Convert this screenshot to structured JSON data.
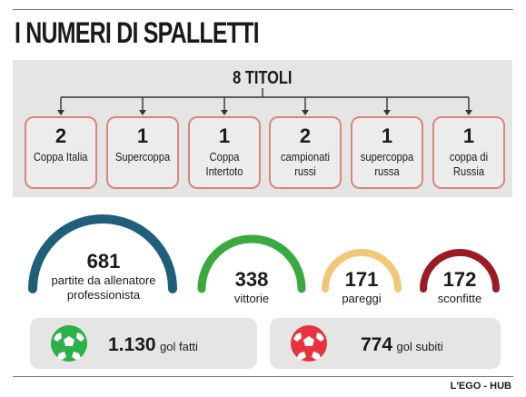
{
  "header": {
    "title": "I NUMERI DI SPALLETTI"
  },
  "titles": {
    "heading": "8 TITOLI",
    "items": [
      {
        "num": "2",
        "label": "Coppa Italia"
      },
      {
        "num": "1",
        "label": "Supercoppa"
      },
      {
        "num": "1",
        "label": "Coppa Intertoto"
      },
      {
        "num": "2",
        "label": "campionati russi"
      },
      {
        "num": "1",
        "label": "supercoppa russa"
      },
      {
        "num": "1",
        "label": "coppa di Russia"
      }
    ],
    "box_border_color": "#d9867a"
  },
  "stats": {
    "matches": {
      "value": "681",
      "label": "partite da allenatore professionista",
      "color": "#1f5f7a"
    },
    "wins": {
      "value": "338",
      "label": "vittorie",
      "color": "#3aaa3e"
    },
    "draws": {
      "value": "171",
      "label": "pareggi",
      "color": "#f0c878"
    },
    "losses": {
      "value": "172",
      "label": "sconfitte",
      "color": "#9a1b24"
    }
  },
  "goals": {
    "scored": {
      "value": "1.130",
      "label": "gol fatti",
      "icon": "soccer-ball-green-icon",
      "color": "#2bb04a"
    },
    "conceded": {
      "value": "774",
      "label": "gol subiti",
      "icon": "soccer-ball-red-icon",
      "color": "#e8323c"
    }
  },
  "footer": {
    "credit": "L'EGO - HUB"
  }
}
